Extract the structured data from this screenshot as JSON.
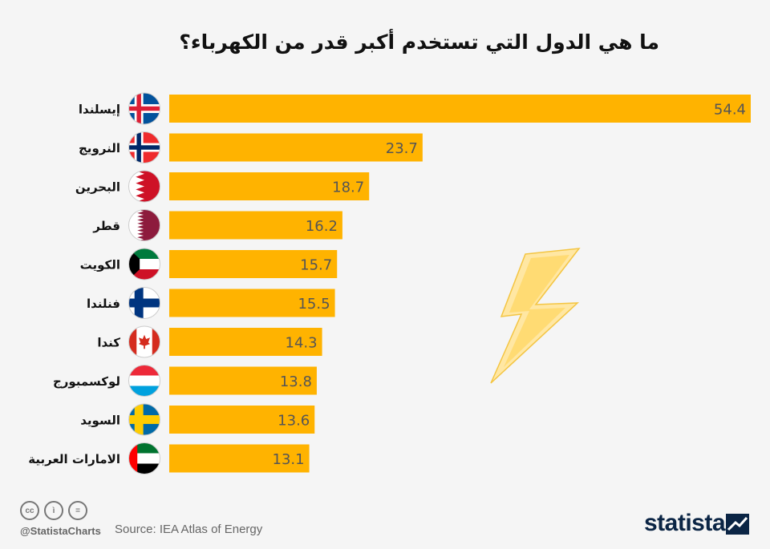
{
  "chart_data": {
    "type": "bar",
    "orientation": "horizontal",
    "title": "ما هي الدول التي تستخدم أكبر قدر من الكهرباء؟",
    "categories": [
      "إيسلندا",
      "النرويج",
      "البحرين",
      "قطر",
      "الكويت",
      "فنلندا",
      "كندا",
      "لوكسمبورج",
      "السويد",
      "الامارات العربية"
    ],
    "flags": [
      "iceland",
      "norway",
      "bahrain",
      "qatar",
      "kuwait",
      "finland",
      "canada",
      "luxembourg",
      "sweden",
      "uae"
    ],
    "values": [
      54.4,
      23.7,
      18.7,
      16.2,
      15.7,
      15.5,
      14.3,
      13.8,
      13.6,
      13.1
    ],
    "xlim": [
      0,
      54.4
    ],
    "grid": false,
    "bar_color": "#ffb300"
  },
  "footer": {
    "handle": "@StatistaCharts",
    "source": "Source: IEA Atlas of Energy",
    "brand": "statista",
    "license_icons": [
      "cc-icon",
      "by-icon",
      "nd-icon"
    ]
  },
  "decoration": {
    "icon": "lightning-bolt-icon",
    "color": "#ffd24d"
  }
}
